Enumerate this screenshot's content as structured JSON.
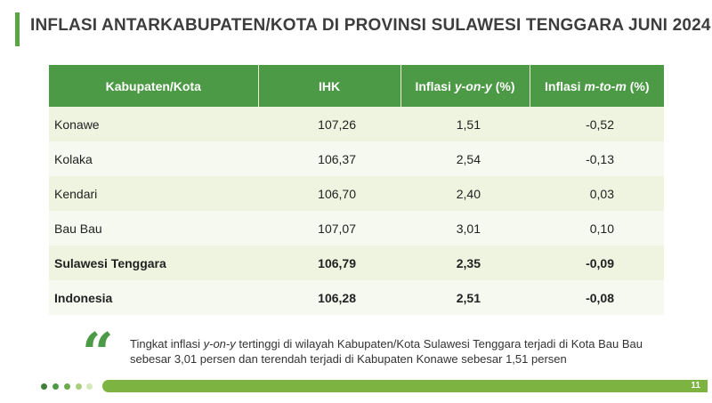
{
  "title": "INFLASI ANTARKABUPATEN/KOTA DI PROVINSI SULAWESI TENGGARA JUNI 2024",
  "table": {
    "header": [
      [
        "Kabupaten/Kota"
      ],
      [
        "IHK"
      ],
      [
        "Inflasi ",
        "y-on-y",
        " (%)"
      ],
      [
        "Inflasi ",
        "m-to-m",
        " (%)"
      ]
    ],
    "rows": [
      [
        "Konawe",
        "107,26",
        "1,51",
        "-0,52"
      ],
      [
        "Kolaka",
        "106,37",
        "2,54",
        "-0,13"
      ],
      [
        "Kendari",
        "106,70",
        "2,40",
        "0,03"
      ],
      [
        "Bau Bau",
        "107,07",
        "3,01",
        "0,10"
      ],
      [
        "Sulawesi Tenggara",
        "106,79",
        "2,35",
        "-0,09"
      ],
      [
        "Indonesia",
        "106,28",
        "2,51",
        "-0,08"
      ]
    ]
  },
  "quote": [
    "Tingkat inflasi ",
    "y-on-y",
    " tertinggi di wilayah Kabupaten/Kota Sulawesi Tenggara terjadi di Kota Bau Bau sebesar 3,01 persen dan terendah terjadi di Kabupaten Konawe sebesar 1,51 persen"
  ],
  "page_number": "11"
}
